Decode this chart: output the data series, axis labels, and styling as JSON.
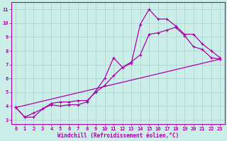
{
  "xlabel": "Windchill (Refroidissement éolien,°C)",
  "bg_color": "#cceee8",
  "line_color": "#aa00aa",
  "grid_color": "#aacccc",
  "xlim": [
    -0.5,
    23.5
  ],
  "ylim": [
    2.7,
    11.5
  ],
  "xticks": [
    0,
    1,
    2,
    3,
    4,
    5,
    6,
    7,
    8,
    9,
    10,
    11,
    12,
    13,
    14,
    15,
    16,
    17,
    18,
    19,
    20,
    21,
    22,
    23
  ],
  "yticks": [
    3,
    4,
    5,
    6,
    7,
    8,
    9,
    10,
    11
  ],
  "series1_x": [
    0,
    1,
    2,
    3,
    4,
    5,
    6,
    7,
    8,
    9,
    10,
    11,
    12,
    13,
    14,
    15,
    16,
    17,
    18,
    19,
    20,
    21,
    22,
    23
  ],
  "series1_y": [
    3.9,
    3.2,
    3.2,
    3.8,
    4.1,
    4.0,
    4.1,
    4.1,
    4.3,
    5.1,
    6.0,
    7.5,
    6.8,
    7.1,
    9.9,
    11.0,
    10.3,
    10.3,
    9.8,
    9.2,
    9.2,
    8.5,
    8.0,
    7.5
  ],
  "series2_x": [
    0,
    1,
    2,
    3,
    4,
    5,
    6,
    7,
    8,
    9,
    10,
    11,
    12,
    13,
    14,
    15,
    16,
    17,
    18,
    19,
    20,
    21,
    22,
    23
  ],
  "series2_y": [
    3.9,
    3.2,
    3.5,
    3.8,
    4.2,
    4.3,
    4.3,
    4.4,
    4.4,
    5.0,
    5.5,
    6.2,
    6.8,
    7.2,
    7.7,
    9.2,
    9.3,
    9.5,
    9.7,
    9.1,
    8.3,
    8.1,
    7.5,
    7.4
  ],
  "series3_x": [
    0,
    23
  ],
  "series3_y": [
    3.9,
    7.4
  ],
  "xlabel_fontsize": 5.5,
  "tick_fontsize": 5.0
}
